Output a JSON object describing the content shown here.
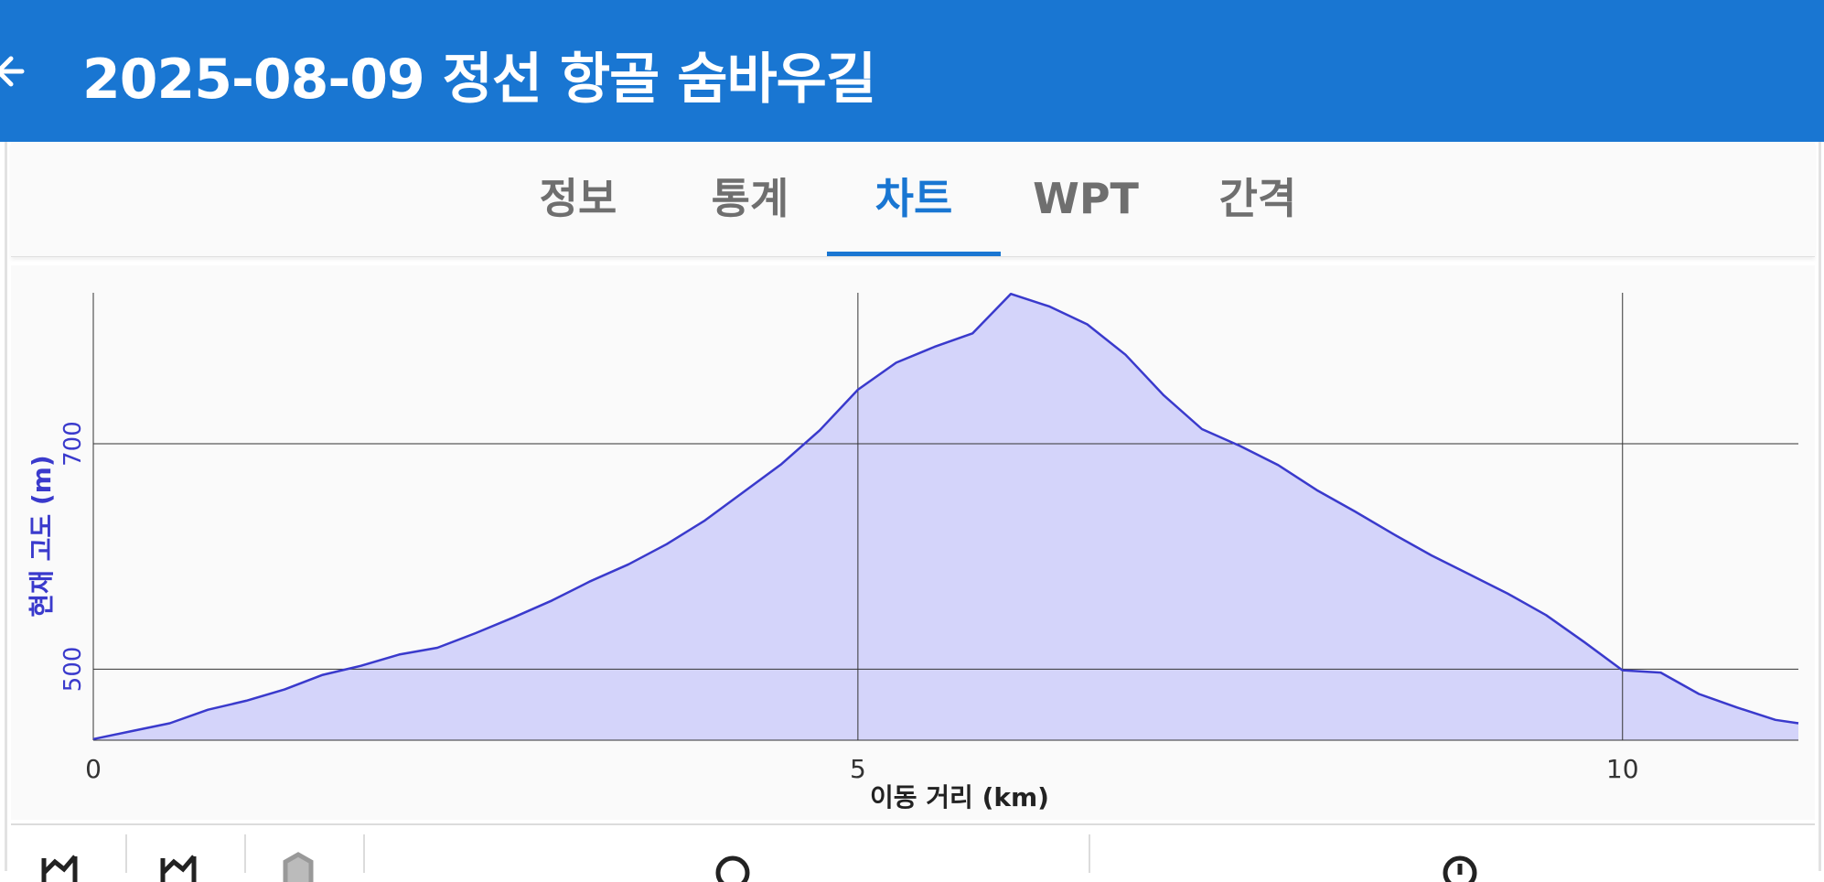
{
  "appbar": {
    "title": "2025-08-09 정선 항골 숨바우길",
    "back_icon": "arrow-back-icon",
    "background_color": "#1976d2"
  },
  "tabs": [
    {
      "label": "정보",
      "active": false
    },
    {
      "label": "통계",
      "active": false
    },
    {
      "label": "차트",
      "active": true
    },
    {
      "label": "WPT",
      "active": false
    },
    {
      "label": "간격",
      "active": false
    }
  ],
  "chart_data": {
    "type": "area",
    "xlabel": "이동 거리 (km)",
    "ylabel": "현재 고도 (m)",
    "x_ticks": [
      0,
      5,
      10
    ],
    "y_ticks": [
      500,
      700
    ],
    "xlim": [
      0,
      11.15
    ],
    "ylim": [
      437,
      834
    ],
    "grid": true,
    "line_color": "#3a3acc",
    "fill_color": "#d4d4fa",
    "ylabel_color": "#3a3acc",
    "series": [
      {
        "x": [
          0,
          0.25,
          0.5,
          0.75,
          1.0,
          1.25,
          1.5,
          1.75,
          2.0,
          2.25,
          2.5,
          2.75,
          3.0,
          3.25,
          3.5,
          3.75,
          4.0,
          4.25,
          4.5,
          4.75,
          5.0,
          5.25,
          5.5,
          5.75,
          6.0,
          6.25,
          6.5,
          6.75,
          7.0,
          7.25,
          7.5,
          7.75,
          8.0,
          8.25,
          8.5,
          8.75,
          9.0,
          9.25,
          9.5,
          9.75,
          10.0,
          10.25,
          10.5,
          10.75,
          11.0,
          11.15
        ],
        "y": [
          438,
          445,
          452,
          464,
          472,
          482,
          495,
          503,
          513,
          519,
          532,
          546,
          561,
          578,
          593,
          611,
          632,
          657,
          682,
          712,
          748,
          772,
          786,
          798,
          833,
          822,
          806,
          779,
          743,
          713,
          698,
          681,
          659,
          640,
          620,
          601,
          584,
          567,
          548,
          524,
          499,
          497,
          478,
          466,
          455,
          452
        ]
      }
    ]
  },
  "toolbar": {
    "icons": [
      "chart-view-icon",
      "chart-view-alt-icon",
      "map-icon",
      "zoom-icon",
      "info-icon"
    ]
  }
}
